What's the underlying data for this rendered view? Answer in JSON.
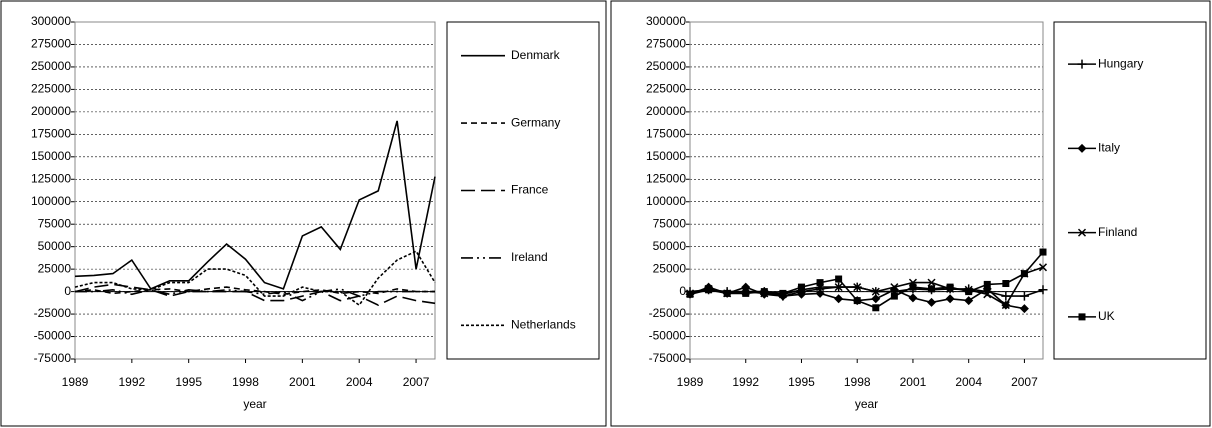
{
  "chart_data": [
    {
      "type": "line",
      "x_label": "year",
      "x": [
        1989,
        1990,
        1991,
        1992,
        1993,
        1994,
        1995,
        1996,
        1997,
        1998,
        1999,
        2000,
        2001,
        2002,
        2003,
        2004,
        2005,
        2006,
        2007,
        2008
      ],
      "xlim": [
        1989,
        2008
      ],
      "xticks": [
        1989,
        1992,
        1995,
        1998,
        2001,
        2004,
        2007
      ],
      "ylim": [
        -75000,
        300000
      ],
      "yticks": [
        -75000,
        -50000,
        -25000,
        0,
        25000,
        50000,
        75000,
        100000,
        125000,
        150000,
        175000,
        200000,
        225000,
        250000,
        275000,
        300000
      ],
      "grid": true,
      "legend": "right",
      "series": [
        {
          "name": "Denmark",
          "color": "#000000",
          "dash": "none",
          "values": [
            17000,
            18000,
            20000,
            35000,
            3000,
            12000,
            12000,
            33000,
            53000,
            36000,
            10000,
            3000,
            62000,
            72000,
            47000,
            102000,
            112000,
            190000,
            25000,
            128000
          ]
        },
        {
          "name": "Germany",
          "color": "#000000",
          "dash": "6 4",
          "values": [
            0,
            2000,
            -2000,
            0,
            2000,
            3000,
            0,
            3000,
            5000,
            2000,
            0,
            -3000,
            0,
            2000,
            -2000,
            0,
            -2000,
            3000,
            0,
            0
          ]
        },
        {
          "name": "France",
          "color": "#000000",
          "dash": "14 6",
          "values": [
            0,
            5000,
            8000,
            5000,
            2000,
            -5000,
            0,
            0,
            0,
            0,
            -10000,
            -10000,
            -5000,
            0,
            -10000,
            -5000,
            -15000,
            -5000,
            -10000,
            -13000
          ]
        },
        {
          "name": "Ireland",
          "color": "#000000",
          "dash": "12 4 2 4 2 4",
          "values": [
            0,
            0,
            2000,
            -3000,
            2000,
            -3000,
            2000,
            0,
            2000,
            0,
            -3000,
            0,
            -10000,
            0,
            3000,
            -5000,
            0,
            0,
            0,
            0
          ]
        },
        {
          "name": "Netherlands",
          "color": "#000000",
          "dash": "3 2",
          "values": [
            5000,
            10000,
            10000,
            3000,
            2000,
            10000,
            10000,
            25000,
            25000,
            18000,
            -5000,
            -5000,
            5000,
            0,
            0,
            -15000,
            15000,
            35000,
            45000,
            10000
          ]
        }
      ]
    },
    {
      "type": "line",
      "x_label": "year",
      "x": [
        1989,
        1990,
        1991,
        1992,
        1993,
        1994,
        1995,
        1996,
        1997,
        1998,
        1999,
        2000,
        2001,
        2002,
        2003,
        2004,
        2005,
        2006,
        2007,
        2008
      ],
      "xlim": [
        1989,
        2008
      ],
      "xticks": [
        1989,
        1992,
        1995,
        1998,
        2001,
        2004,
        2007
      ],
      "ylim": [
        -75000,
        300000
      ],
      "yticks": [
        -75000,
        -50000,
        -25000,
        0,
        25000,
        50000,
        75000,
        100000,
        125000,
        150000,
        175000,
        200000,
        225000,
        250000,
        275000,
        300000
      ],
      "grid": true,
      "legend": "right",
      "series": [
        {
          "name": "Hungary",
          "color": "#000000",
          "marker": "plus",
          "values": [
            0,
            2000,
            0,
            0,
            0,
            -5000,
            0,
            3000,
            5000,
            5000,
            0,
            0,
            3000,
            2000,
            3000,
            3000,
            0,
            -5000,
            -5000,
            2000
          ]
        },
        {
          "name": "Italy",
          "color": "#000000",
          "marker": "diamond",
          "values": [
            -3000,
            5000,
            -2000,
            5000,
            -3000,
            -5000,
            -3000,
            -2000,
            -8000,
            -10000,
            -8000,
            2000,
            -7000,
            -12000,
            -8000,
            -10000,
            3000,
            -15000,
            -19000,
            null
          ]
        },
        {
          "name": "Finland",
          "color": "#000000",
          "marker": "x",
          "values": [
            -2000,
            3000,
            -2000,
            0,
            -2000,
            -3000,
            2000,
            5000,
            5000,
            5000,
            0,
            5000,
            10000,
            10000,
            3000,
            2000,
            -3000,
            -15000,
            20000,
            27000
          ]
        },
        {
          "name": "UK",
          "color": "#000000",
          "marker": "square",
          "values": [
            -3000,
            2000,
            -2000,
            -2000,
            0,
            -2000,
            5000,
            10000,
            14000,
            -10000,
            -18000,
            -5000,
            5000,
            3000,
            5000,
            0,
            8000,
            9000,
            20000,
            44000
          ]
        }
      ]
    }
  ]
}
